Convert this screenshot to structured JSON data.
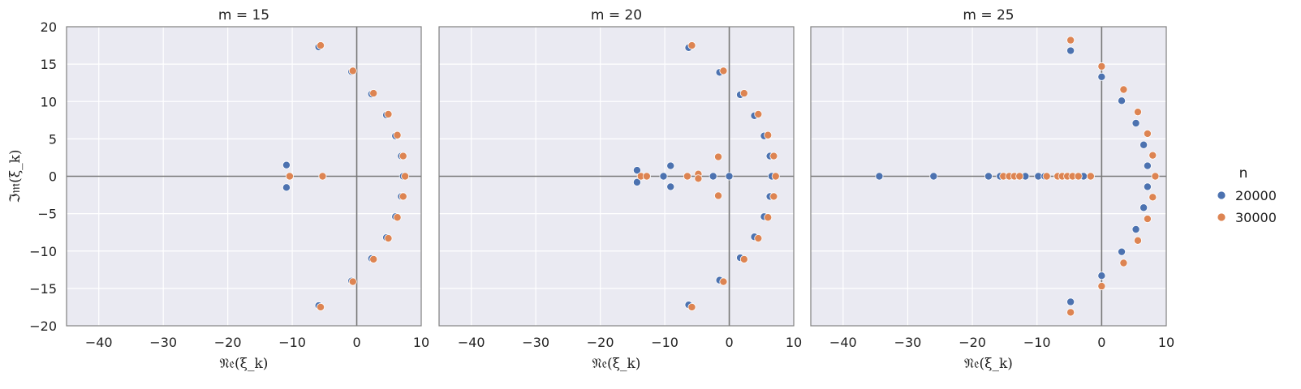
{
  "figure": {
    "legend": {
      "title": "n",
      "entries": [
        {
          "label": "20000",
          "color": "#4c72b0"
        },
        {
          "label": "30000",
          "color": "#dd8452"
        }
      ],
      "placement": "right"
    },
    "xlabel": "𝔑𝔢(ξ_k)",
    "ylabel": "ℑ𝔪(ξ_k)",
    "background": "#eaeaf2",
    "grid": true
  },
  "chart_data": [
    {
      "type": "scatter",
      "title": "m = 15",
      "xlabel": "𝔑𝔢(ξ_k)",
      "ylabel": "ℑ𝔪(ξ_k)",
      "xlim": [
        -45,
        10
      ],
      "ylim": [
        -20,
        20
      ],
      "xticks": [
        -40,
        -30,
        -20,
        -10,
        0,
        10
      ],
      "yticks": [
        -20,
        -15,
        -10,
        -5,
        0,
        5,
        10,
        15,
        20
      ],
      "xtick_labels": [
        "−40",
        "−30",
        "−20",
        "−10",
        "0",
        "10"
      ],
      "ytick_labels": [
        "−20",
        "−15",
        "−10",
        "−5",
        "0",
        "5",
        "10",
        "15",
        "20"
      ],
      "series": [
        {
          "name": "20000",
          "color": "#4c72b0",
          "points": [
            [
              -5.9,
              17.3
            ],
            [
              -0.8,
              14.0
            ],
            [
              2.3,
              11.0
            ],
            [
              4.6,
              8.2
            ],
            [
              6.0,
              5.4
            ],
            [
              6.9,
              2.7
            ],
            [
              7.2,
              0
            ],
            [
              6.9,
              -2.7
            ],
            [
              6.0,
              -5.4
            ],
            [
              4.6,
              -8.2
            ],
            [
              2.3,
              -11.0
            ],
            [
              -0.8,
              -14.0
            ],
            [
              -5.9,
              -17.3
            ],
            [
              -10.9,
              1.5
            ],
            [
              -10.9,
              -1.5
            ]
          ]
        },
        {
          "name": "30000",
          "color": "#dd8452",
          "points": [
            [
              -5.6,
              17.5
            ],
            [
              -0.6,
              14.1
            ],
            [
              2.6,
              11.1
            ],
            [
              4.9,
              8.3
            ],
            [
              6.3,
              5.5
            ],
            [
              7.2,
              2.7
            ],
            [
              7.5,
              0
            ],
            [
              7.2,
              -2.7
            ],
            [
              6.3,
              -5.5
            ],
            [
              4.9,
              -8.3
            ],
            [
              2.6,
              -11.1
            ],
            [
              -0.6,
              -14.1
            ],
            [
              -5.6,
              -17.5
            ],
            [
              -10.4,
              0
            ],
            [
              -5.3,
              0
            ]
          ]
        }
      ]
    },
    {
      "type": "scatter",
      "title": "m = 20",
      "xlabel": "𝔑𝔢(ξ_k)",
      "ylabel": "",
      "xlim": [
        -45,
        10
      ],
      "ylim": [
        -20,
        20
      ],
      "xticks": [
        -40,
        -30,
        -20,
        -10,
        0,
        10
      ],
      "yticks": [],
      "xtick_labels": [
        "−40",
        "−30",
        "−20",
        "−10",
        "0",
        "10"
      ],
      "ytick_labels": [],
      "series": [
        {
          "name": "20000",
          "color": "#4c72b0",
          "points": [
            [
              -6.3,
              17.2
            ],
            [
              -1.5,
              13.9
            ],
            [
              1.7,
              10.9
            ],
            [
              3.9,
              8.1
            ],
            [
              5.4,
              5.4
            ],
            [
              6.3,
              2.7
            ],
            [
              6.6,
              0
            ],
            [
              6.3,
              -2.7
            ],
            [
              5.4,
              -5.4
            ],
            [
              3.9,
              -8.1
            ],
            [
              1.7,
              -10.9
            ],
            [
              -1.5,
              -13.9
            ],
            [
              -6.3,
              -17.2
            ],
            [
              -14.3,
              0.8
            ],
            [
              -14.3,
              -0.8
            ],
            [
              -10.2,
              0
            ],
            [
              -9.1,
              1.4
            ],
            [
              -9.1,
              -1.4
            ],
            [
              -2.5,
              0
            ],
            [
              0,
              0
            ]
          ]
        },
        {
          "name": "30000",
          "color": "#dd8452",
          "points": [
            [
              -5.8,
              17.5
            ],
            [
              -0.9,
              14.1
            ],
            [
              2.3,
              11.1
            ],
            [
              4.5,
              8.3
            ],
            [
              6.0,
              5.5
            ],
            [
              6.9,
              2.7
            ],
            [
              7.2,
              0
            ],
            [
              6.9,
              -2.7
            ],
            [
              6.0,
              -5.5
            ],
            [
              4.5,
              -8.3
            ],
            [
              2.3,
              -11.1
            ],
            [
              -0.9,
              -14.1
            ],
            [
              -5.8,
              -17.5
            ],
            [
              -13.7,
              0
            ],
            [
              -12.8,
              0
            ],
            [
              -6.5,
              0
            ],
            [
              -4.8,
              0.3
            ],
            [
              -4.8,
              -0.3
            ],
            [
              -1.7,
              2.6
            ],
            [
              -1.7,
              -2.6
            ]
          ]
        }
      ]
    },
    {
      "type": "scatter",
      "title": "m = 25",
      "xlabel": "𝔑𝔢(ξ_k)",
      "ylabel": "",
      "xlim": [
        -45,
        10
      ],
      "ylim": [
        -20,
        20
      ],
      "xticks": [
        -40,
        -30,
        -20,
        -10,
        0,
        10
      ],
      "yticks": [],
      "xtick_labels": [
        "−40",
        "−30",
        "−20",
        "−10",
        "0",
        "10"
      ],
      "ytick_labels": [],
      "series": [
        {
          "name": "20000",
          "color": "#4c72b0",
          "points": [
            [
              -4.8,
              16.8
            ],
            [
              0,
              13.3
            ],
            [
              3.1,
              10.1
            ],
            [
              5.3,
              7.1
            ],
            [
              6.5,
              4.2
            ],
            [
              7.1,
              1.4
            ],
            [
              7.1,
              -1.4
            ],
            [
              6.5,
              -4.2
            ],
            [
              5.3,
              -7.1
            ],
            [
              3.1,
              -10.1
            ],
            [
              0,
              -13.3
            ],
            [
              -4.8,
              -16.8
            ],
            [
              -34.4,
              0
            ],
            [
              -26.0,
              0
            ],
            [
              -17.5,
              0
            ],
            [
              -15.7,
              0
            ],
            [
              -13.8,
              0
            ],
            [
              -11.8,
              0
            ],
            [
              -9.8,
              0
            ],
            [
              -8.8,
              0
            ],
            [
              -4.6,
              0
            ],
            [
              -2.8,
              0
            ]
          ]
        },
        {
          "name": "30000",
          "color": "#dd8452",
          "points": [
            [
              -4.8,
              18.2
            ],
            [
              0,
              14.7
            ],
            [
              3.4,
              11.6
            ],
            [
              5.6,
              8.6
            ],
            [
              7.1,
              5.7
            ],
            [
              7.9,
              2.8
            ],
            [
              8.3,
              0
            ],
            [
              7.9,
              -2.8
            ],
            [
              7.1,
              -5.7
            ],
            [
              5.6,
              -8.6
            ],
            [
              3.4,
              -11.6
            ],
            [
              0,
              -14.7
            ],
            [
              -4.8,
              -18.2
            ],
            [
              -15.2,
              0
            ],
            [
              -14.3,
              0
            ],
            [
              -13.5,
              0
            ],
            [
              -12.7,
              0
            ],
            [
              -8.5,
              0
            ],
            [
              -6.8,
              0
            ],
            [
              -6.1,
              0
            ],
            [
              -5.3,
              0
            ],
            [
              -4.5,
              0
            ],
            [
              -3.6,
              0
            ],
            [
              -1.7,
              0
            ]
          ]
        }
      ]
    }
  ]
}
